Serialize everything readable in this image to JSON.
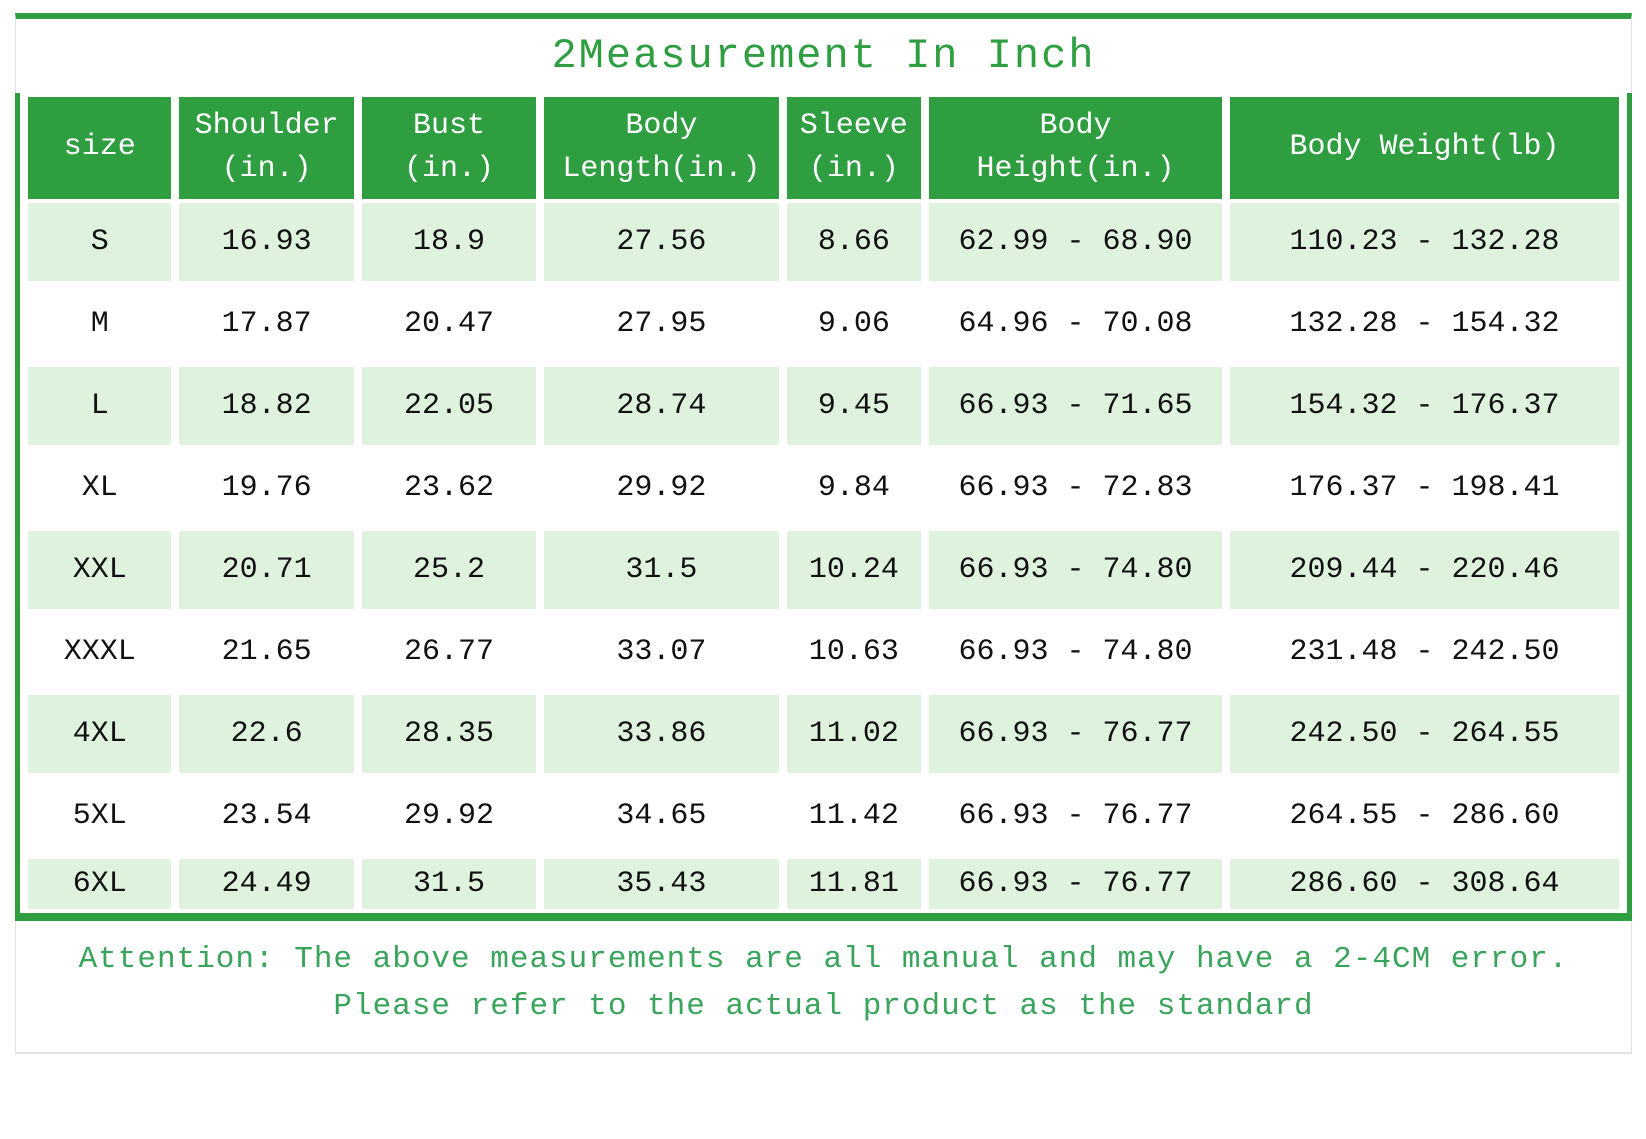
{
  "title": "2Measurement In Inch",
  "colors": {
    "green": "#2f9e41",
    "light_green": "#def2de",
    "text": "#111111",
    "header_text": "#ffffff",
    "note_green": "#3aa45c",
    "frame_gray": "#e2e2e2"
  },
  "table": {
    "columns": [
      "size",
      "Shoulder\n(in.)",
      "Bust\n(in.)",
      "Body\nLength(in.)",
      "Sleeve\n(in.)",
      "Body\nHeight(in.)",
      "Body Weight(lb)"
    ],
    "rows": [
      [
        "S",
        "16.93",
        "18.9",
        "27.56",
        "8.66",
        "62.99 - 68.90",
        "110.23 - 132.28"
      ],
      [
        "M",
        "17.87",
        "20.47",
        "27.95",
        "9.06",
        "64.96 - 70.08",
        "132.28 - 154.32"
      ],
      [
        "L",
        "18.82",
        "22.05",
        "28.74",
        "9.45",
        "66.93 - 71.65",
        "154.32 - 176.37"
      ],
      [
        "XL",
        "19.76",
        "23.62",
        "29.92",
        "9.84",
        "66.93 - 72.83",
        "176.37 - 198.41"
      ],
      [
        "XXL",
        "20.71",
        "25.2",
        "31.5",
        "10.24",
        "66.93 - 74.80",
        "209.44 - 220.46"
      ],
      [
        "XXXL",
        "21.65",
        "26.77",
        "33.07",
        "10.63",
        "66.93 - 74.80",
        "231.48 - 242.50"
      ],
      [
        "4XL",
        "22.6",
        "28.35",
        "33.86",
        "11.02",
        "66.93 - 76.77",
        "242.50 - 264.55"
      ],
      [
        "5XL",
        "23.54",
        "29.92",
        "34.65",
        "11.42",
        "66.93 - 76.77",
        "264.55 - 286.60"
      ],
      [
        "6XL",
        "24.49",
        "31.5",
        "35.43",
        "11.81",
        "66.93 - 76.77",
        "286.60 - 308.64"
      ]
    ]
  },
  "note": {
    "line1": "Attention: The above measurements are all manual and may have a 2-4CM error.",
    "line2": "Please refer to the actual product as the standard"
  }
}
